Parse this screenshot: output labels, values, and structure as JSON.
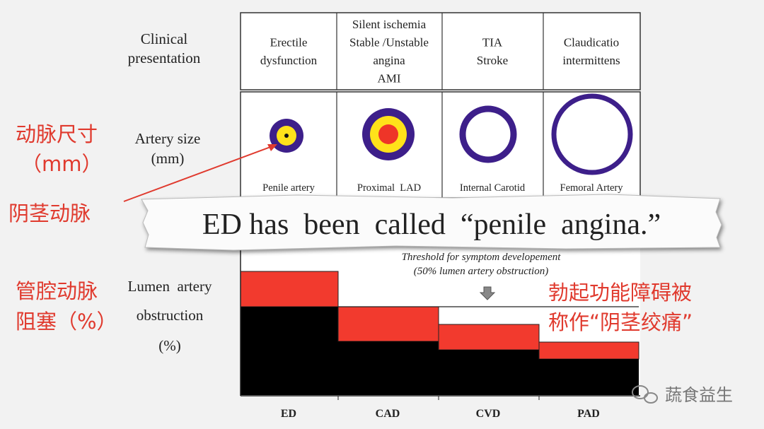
{
  "row_labels": {
    "clinical": [
      "Clinical",
      "presentation"
    ],
    "artery_size": [
      "Artery size",
      "(mm)"
    ],
    "lumen": [
      "Lumen  artery",
      "obstruction",
      "(%)"
    ]
  },
  "columns": [
    {
      "presentation": [
        "Erectile",
        "dysfunction"
      ],
      "artery": "Penile artery",
      "label": "ED"
    },
    {
      "presentation": [
        "Silent ischemia",
        "Stable /Unstable",
        "angina",
        "AMI"
      ],
      "artery": "Proximal  LAD",
      "label": "CAD"
    },
    {
      "presentation": [
        "TIA",
        "Stroke"
      ],
      "artery": "Internal Carotid",
      "label": "CVD"
    },
    {
      "presentation": [
        "Claudicatio",
        "intermittens"
      ],
      "artery": "Femoral Artery",
      "label": "PAD"
    }
  ],
  "banner": "ED has  been  called  “penile  angina.”",
  "threshold": [
    "Threshold for symptom developement",
    "(50% lumen artery obstruction)"
  ],
  "annotations": {
    "artery_size": [
      "动脉尺寸",
      "（mm）"
    ],
    "penile": "阴茎动脉",
    "lumen": [
      "管腔动脉",
      "阻塞（%）"
    ],
    "right": [
      "勃起功能障碍被",
      "称作“阴茎绞痛”"
    ]
  },
  "watermark": "蔬食益生"
}
